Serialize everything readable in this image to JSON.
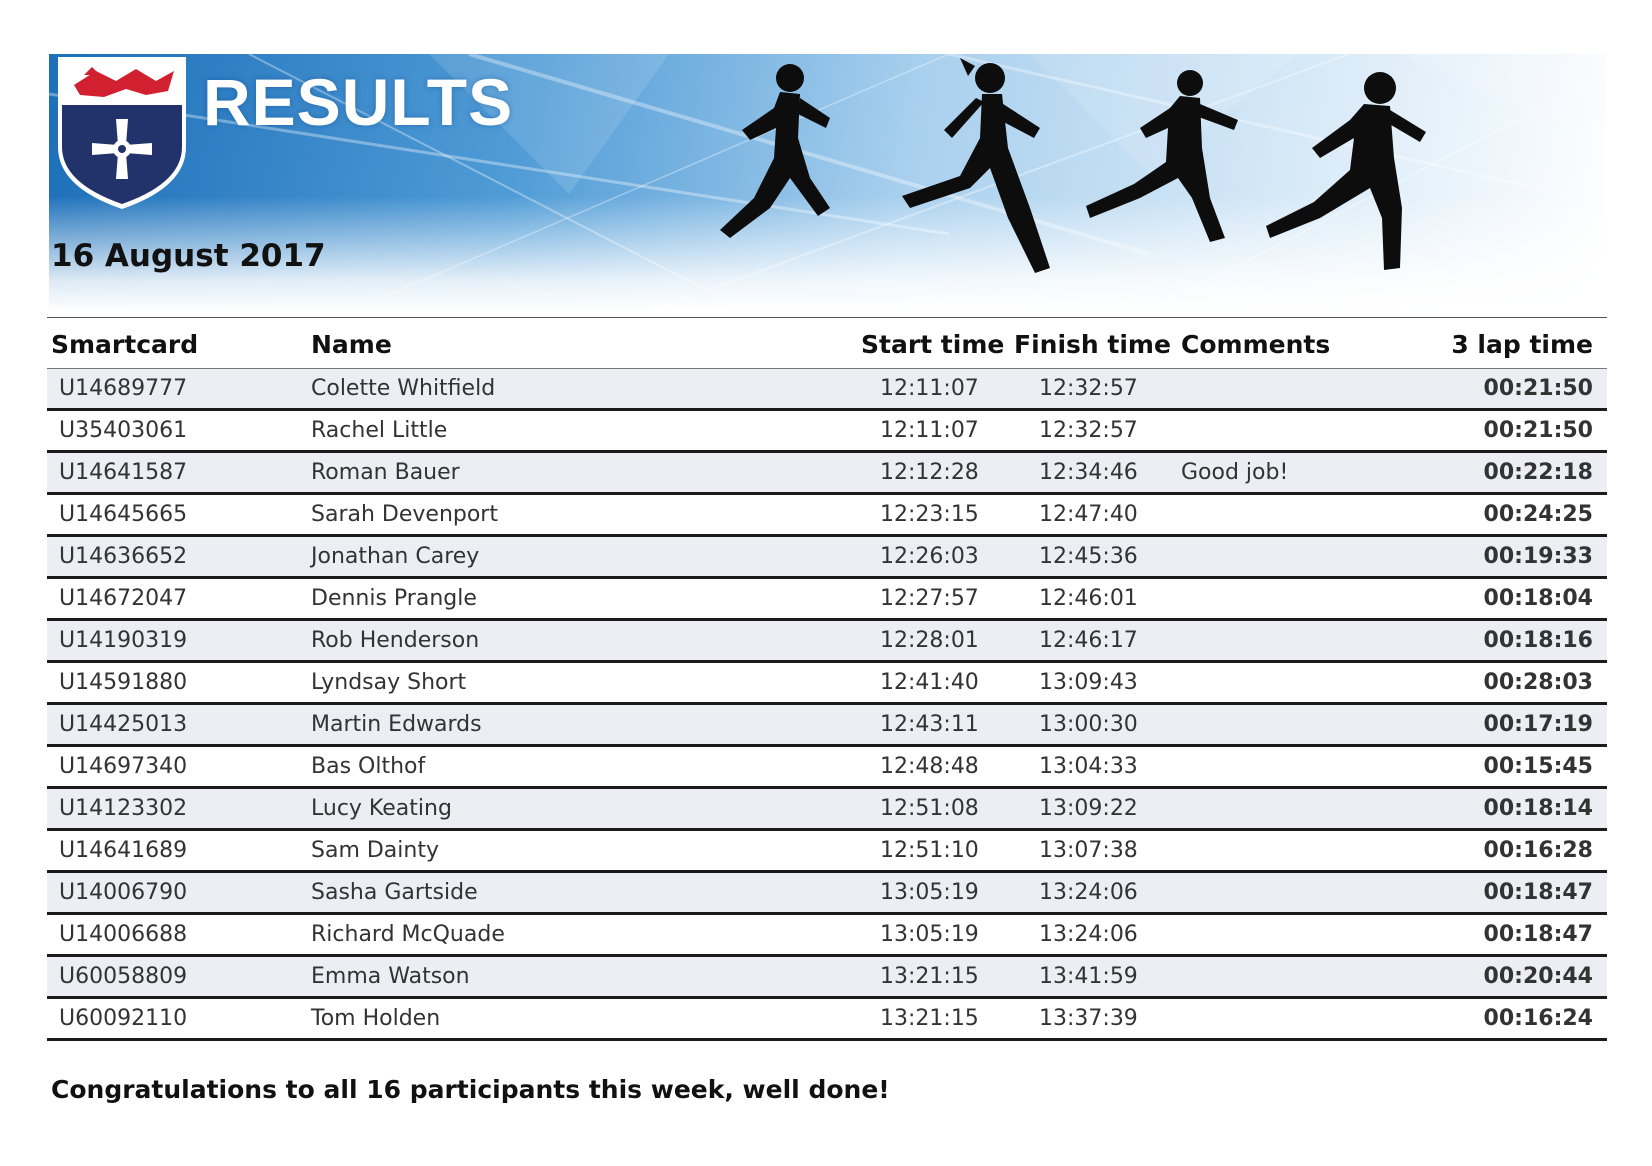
{
  "header": {
    "title": "RESULTS",
    "date": "16 August 2017"
  },
  "table": {
    "columns": {
      "smartcard": "Smartcard",
      "name": "Name",
      "start": "Start time",
      "finish": "Finish time",
      "comments": "Comments",
      "lap": "3 lap time"
    },
    "rows": [
      {
        "card": "U14689777",
        "name": "Colette Whitfield",
        "start": "12:11:07",
        "finish": "12:32:57",
        "comment": "",
        "lap": "00:21:50"
      },
      {
        "card": "U35403061",
        "name": "Rachel Little",
        "start": "12:11:07",
        "finish": "12:32:57",
        "comment": "",
        "lap": "00:21:50"
      },
      {
        "card": "U14641587",
        "name": "Roman Bauer",
        "start": "12:12:28",
        "finish": "12:34:46",
        "comment": "Good job!",
        "lap": "00:22:18"
      },
      {
        "card": "U14645665",
        "name": "Sarah Devenport",
        "start": "12:23:15",
        "finish": "12:47:40",
        "comment": "",
        "lap": "00:24:25"
      },
      {
        "card": "U14636652",
        "name": "Jonathan Carey",
        "start": "12:26:03",
        "finish": "12:45:36",
        "comment": "",
        "lap": "00:19:33"
      },
      {
        "card": "U14672047",
        "name": "Dennis Prangle",
        "start": "12:27:57",
        "finish": "12:46:01",
        "comment": "",
        "lap": "00:18:04"
      },
      {
        "card": "U14190319",
        "name": "Rob Henderson",
        "start": "12:28:01",
        "finish": "12:46:17",
        "comment": "",
        "lap": "00:18:16"
      },
      {
        "card": "U14591880",
        "name": "Lyndsay Short",
        "start": "12:41:40",
        "finish": "13:09:43",
        "comment": "",
        "lap": "00:28:03"
      },
      {
        "card": "U14425013",
        "name": "Martin Edwards",
        "start": "12:43:11",
        "finish": "13:00:30",
        "comment": "",
        "lap": "00:17:19"
      },
      {
        "card": "U14697340",
        "name": "Bas Olthof",
        "start": "12:48:48",
        "finish": "13:04:33",
        "comment": "",
        "lap": "00:15:45"
      },
      {
        "card": "U14123302",
        "name": "Lucy Keating",
        "start": "12:51:08",
        "finish": "13:09:22",
        "comment": "",
        "lap": "00:18:14"
      },
      {
        "card": "U14641689",
        "name": "Sam Dainty",
        "start": "12:51:10",
        "finish": "13:07:38",
        "comment": "",
        "lap": "00:16:28"
      },
      {
        "card": "U14006790",
        "name": "Sasha Gartside",
        "start": "13:05:19",
        "finish": "13:24:06",
        "comment": "",
        "lap": "00:18:47"
      },
      {
        "card": "U14006688",
        "name": "Richard McQuade",
        "start": "13:05:19",
        "finish": "13:24:06",
        "comment": "",
        "lap": "00:18:47"
      },
      {
        "card": "U60058809",
        "name": "Emma Watson",
        "start": "13:21:15",
        "finish": "13:41:59",
        "comment": "",
        "lap": "00:20:44"
      },
      {
        "card": "U60092110",
        "name": "Tom Holden",
        "start": "13:21:15",
        "finish": "13:37:39",
        "comment": "",
        "lap": "00:16:24"
      }
    ]
  },
  "footer": {
    "message": "Congratulations to all 16 participants this week, well done!"
  }
}
